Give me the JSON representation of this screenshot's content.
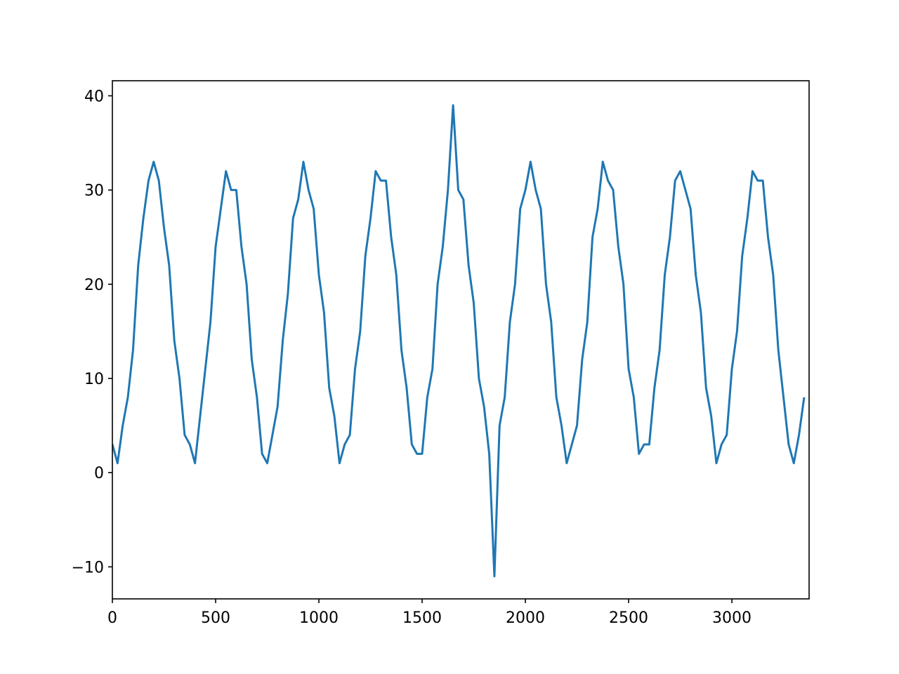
{
  "chart_data": {
    "type": "line",
    "color": "#1f77b4",
    "x": [
      0,
      25,
      50,
      75,
      100,
      125,
      150,
      175,
      200,
      225,
      250,
      275,
      300,
      325,
      350,
      375,
      400,
      425,
      450,
      475,
      500,
      525,
      550,
      575,
      600,
      625,
      650,
      675,
      700,
      725,
      750,
      775,
      800,
      825,
      850,
      875,
      900,
      925,
      950,
      975,
      1000,
      1025,
      1050,
      1075,
      1100,
      1125,
      1150,
      1175,
      1200,
      1225,
      1250,
      1275,
      1300,
      1325,
      1350,
      1375,
      1400,
      1425,
      1450,
      1475,
      1500,
      1525,
      1550,
      1575,
      1600,
      1625,
      1650,
      1675,
      1700,
      1725,
      1750,
      1775,
      1800,
      1825,
      1850,
      1875,
      1900,
      1925,
      1950,
      1975,
      2000,
      2025,
      2050,
      2075,
      2100,
      2125,
      2150,
      2175,
      2200,
      2225,
      2250,
      2275,
      2300,
      2325,
      2350,
      2375,
      2400,
      2425,
      2450,
      2475,
      2500,
      2525,
      2550,
      2575,
      2600,
      2625,
      2650,
      2675,
      2700,
      2725,
      2750,
      2775,
      2800,
      2825,
      2850,
      2875,
      2900,
      2925,
      2950,
      2975,
      3000,
      3025,
      3050,
      3075,
      3100,
      3125,
      3150,
      3175,
      3200,
      3225,
      3250,
      3275,
      3300,
      3325,
      3350
    ],
    "values": [
      3,
      1,
      5,
      8,
      13,
      22,
      27,
      31,
      33,
      31,
      26,
      22,
      14,
      10,
      4,
      3,
      1,
      6,
      11,
      16,
      24,
      28,
      32,
      30,
      30,
      24,
      20,
      12,
      8,
      2,
      1,
      4,
      7,
      14,
      19,
      27,
      29,
      33,
      30,
      28,
      21,
      17,
      9,
      6,
      1,
      3,
      4,
      11,
      15,
      23,
      27,
      32,
      31,
      31,
      25,
      21,
      13,
      9,
      3,
      2,
      2,
      8,
      11,
      20,
      24,
      30,
      39,
      30,
      29,
      22,
      18,
      10,
      7,
      2,
      -11,
      5,
      8,
      16,
      20,
      28,
      30,
      33,
      30,
      28,
      20,
      16,
      8,
      5,
      1,
      3,
      5,
      12,
      16,
      25,
      28,
      33,
      31,
      30,
      24,
      20,
      11,
      8,
      2,
      3,
      3,
      9,
      13,
      21,
      25,
      31,
      32,
      30,
      28,
      21,
      17,
      9,
      6,
      1,
      3,
      4,
      11,
      15,
      23,
      27,
      32,
      31,
      31,
      25,
      21,
      13,
      8,
      3,
      1,
      4,
      8
    ],
    "xlim": [
      0,
      3374
    ],
    "ylim": [
      -13.4,
      41.6
    ],
    "xticks": [
      0,
      500,
      1000,
      1500,
      2000,
      2500,
      3000
    ],
    "yticks": [
      {
        "value": -10,
        "label": "−10"
      },
      0,
      10,
      20,
      30,
      40
    ]
  }
}
